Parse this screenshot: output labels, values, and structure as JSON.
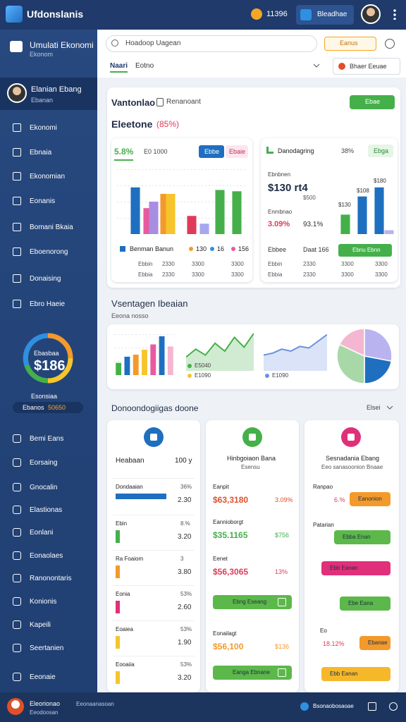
{
  "header": {
    "brand": "Ufdonslanis",
    "coin": "11396",
    "button": "Bleadhae"
  },
  "sidebar": {
    "app_title": "Umulati Ekonomi",
    "app_subtitle": "Ekonom",
    "user_name": "Elanian Ebang",
    "user_role": "Ebanan",
    "nav": [
      "Ekonomi",
      "Ebnaia",
      "Ekonomian",
      "Eonanis",
      "Bomani Bkaia",
      "Eboenorong",
      "Donaising",
      "Ebro Haeie"
    ],
    "gauge": {
      "label": "Ebasbaa",
      "value": "$186",
      "caption": "Esonsiaa",
      "pill": "Ebanos",
      "pill_value": "50650"
    },
    "nav2": [
      "Bemi Eans",
      "Eorsaing",
      "Gnocalin",
      "Elastionas",
      "Eonlani",
      "Eonaolaes",
      "Ranonontaris",
      "Konionis",
      "Kapeili",
      "Seertanien",
      "Eeonaie"
    ]
  },
  "toolbar": {
    "search": "Hoadoop Uagean",
    "chip": "Eanus",
    "tab_active": "Naari",
    "tab": "Eotno",
    "select": "Bhaer Eeuae"
  },
  "overview": {
    "title": "Vantonlao",
    "subtitle": "Renanoant",
    "button": "Ebae",
    "heading": "Eleetone",
    "heading_note": "(85%)"
  },
  "chart_data": [
    {
      "type": "bar",
      "title": "5.8%",
      "subtitle": "E0 1000",
      "tabs": [
        "Ebbe",
        "Ebaie"
      ],
      "values": [
        72,
        40,
        50,
        62,
        62,
        28,
        16,
        68,
        66
      ],
      "colors": [
        "#1f6fc0",
        "#e85aa0",
        "#a78ee0",
        "#f39a2b",
        "#f5c52b",
        "#e03a5a",
        "#a9a6f0",
        "#45b04a",
        "#45b04a"
      ],
      "ylim": [
        0,
        100
      ],
      "legend": "Benman Banun",
      "stats": [
        "130",
        "16",
        "156"
      ],
      "rows": [
        [
          "Ebbin",
          "2330",
          "3300",
          "3300"
        ],
        [
          "Ebbia",
          "2330",
          "3300",
          "3300"
        ]
      ]
    },
    {
      "type": "bar",
      "title": "Danodagring",
      "note": "38%",
      "tab": "Ebga",
      "label": "Ebnbnen",
      "big": "$130 rt4",
      "small": "$500",
      "label2": "Enmbnao",
      "pct1": "3.09%",
      "pct2": "93.1%",
      "values": [
        30,
        58,
        72,
        6
      ],
      "colors": [
        "#45b04a",
        "#1f6fc0",
        "#1f6fc0",
        "#b9b3f0"
      ],
      "ylim": [
        0,
        100
      ],
      "annotations": [
        "$130",
        "$108",
        "$180"
      ],
      "button": "Ebnu Ebnn",
      "legend": [
        "Ebbee",
        "Daat 166"
      ],
      "rows": [
        [
          "Ebbin",
          "2330",
          "3300",
          "3300"
        ],
        [
          "Ebbia",
          "2330",
          "3300",
          "3300"
        ]
      ]
    },
    {
      "type": "bar",
      "title": "Vsentagen Ibeaian",
      "subtitle": "Eeona nosso",
      "values": [
        30,
        45,
        50,
        62,
        75,
        95,
        70
      ],
      "colors": [
        "#45b04a",
        "#1f6fc0",
        "#f39a2b",
        "#f5c52b",
        "#e85aa0",
        "#1f6fc0",
        "#f4b6d0"
      ],
      "ylim": [
        0,
        100
      ]
    },
    {
      "type": "area",
      "values": [
        35,
        55,
        40,
        70,
        50,
        85,
        60,
        95
      ],
      "color": "#45b04a",
      "ylim": [
        0,
        100
      ],
      "captions": [
        "E5040",
        "E1090"
      ]
    },
    {
      "type": "area",
      "values": [
        40,
        45,
        55,
        50,
        62,
        58,
        75,
        92
      ],
      "color": "#6d8fe0",
      "ylim": [
        0,
        100
      ],
      "captions": [
        "E1090"
      ]
    },
    {
      "type": "pie",
      "values": [
        28,
        22,
        32,
        18
      ],
      "colors": [
        "#b9b3f0",
        "#1f6fc0",
        "#a8d8a8",
        "#f4b6d0"
      ]
    }
  ],
  "details": {
    "title": "Donoondogiigas doone",
    "menu": "Elsei",
    "col1": {
      "title": "Heabaan",
      "value": "100 y",
      "rows": [
        {
          "label": "Dondaaian",
          "pct": "36%",
          "value": "2.30"
        },
        {
          "label": "Ebin",
          "pct": "8.%",
          "value": "3.20"
        },
        {
          "label": "Ra Foaiom",
          "pct": "3",
          "value": "3.80"
        },
        {
          "label": "Eonia",
          "pct": "53%",
          "value": "2.60"
        },
        {
          "label": "Eoaiea",
          "pct": "53%",
          "value": "1.90"
        },
        {
          "label": "Eooaiia",
          "pct": "53%",
          "value": "3.20"
        }
      ]
    },
    "col2": {
      "title": "Hinbgoiaon Bana",
      "subtitle": "Esensu",
      "items": [
        {
          "label": "Eanpit",
          "value": "$63,3180",
          "note": "3.09%",
          "color": "#e0502a"
        },
        {
          "label": "Eannioborgt",
          "value": "$35.1165",
          "note": "$756",
          "color": "#45b04a"
        },
        {
          "label": "Eenet",
          "value": "$56,3065",
          "note": "13%",
          "color": "#e03a5a"
        },
        {
          "button": "Ebng Eseang",
          "color": "#5cb84a"
        },
        {
          "label": "Eonailagt",
          "value": "$56,100",
          "note": "$136",
          "color": "#f39a2b"
        },
        {
          "button": "Eanga Ebnane",
          "color": "#5cb84a"
        }
      ]
    },
    "col3": {
      "title": "Sesnadania Ebang",
      "subtitle": "Eeo sanasoonion Bnaae",
      "items": [
        {
          "label": "Ranpao",
          "pct": "6.%",
          "button": "Eanonion",
          "color": "#f39a2b"
        },
        {
          "label": "Patarian",
          "button": "Ebba Enan",
          "color": "#5cb84a"
        },
        {
          "button": "Ebb Eanan",
          "color": "#e0307a"
        },
        {
          "button": "Ebe Eana",
          "color": "#5cb84a"
        },
        {
          "label": "Eo",
          "pct": "18.12%",
          "button": "Ebanae",
          "color": "#f39a2b"
        },
        {
          "button": "Ebb Eanan",
          "color": "#f5b82b"
        }
      ]
    }
  },
  "footer": {
    "name": "Eleorionao",
    "role": "Eeodoosan",
    "note": "Eeonaanasoan",
    "right": "Bsonaobosaoae"
  }
}
